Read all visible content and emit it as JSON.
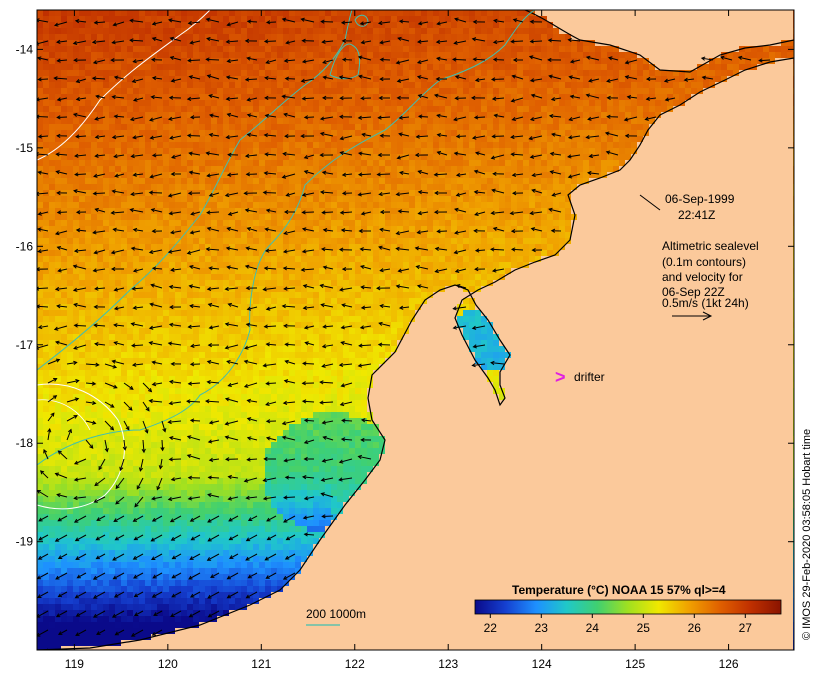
{
  "chart_data": {
    "type": "heatmap",
    "xlim": [
      118.6,
      126.7
    ],
    "ylim": [
      -20.1,
      -13.6
    ],
    "x_ticks": [
      119,
      120,
      121,
      122,
      123,
      124,
      125,
      126
    ],
    "x_tick_labels": [
      "119",
      "120",
      "121",
      "122",
      "123",
      "124",
      "125",
      "126"
    ],
    "y_ticks": [
      -14,
      -15,
      -16,
      -17,
      -18,
      -19
    ],
    "y_tick_labels": [
      "-14",
      "-15",
      "-16",
      "-17",
      "-18",
      "-19"
    ],
    "colorbar": {
      "title": "Temperature (°C) NOAA 15 57% ql>=4",
      "range": [
        21.7,
        27.7
      ],
      "ticks": [
        22,
        23,
        24,
        25,
        26,
        27
      ],
      "tick_labels": [
        "22",
        "23",
        "24",
        "25",
        "26",
        "27"
      ]
    },
    "legend": {
      "isobath_label": "200 1000m"
    },
    "annotations": {
      "date": "06-Sep-1999",
      "time": "22:41Z",
      "sealevel_lines": [
        "Altimetric sealevel",
        "(0.1m contours)",
        "and velocity for",
        "06-Sep 22Z",
        "0.5m/s (1kt 24h)"
      ],
      "drifter_label": "drifter",
      "drifter_marker": ">"
    },
    "credit": "© IMOS 29-Feb-2020 03:58:05 Hobart time"
  },
  "colors": {
    "land": "#fbc99b",
    "isobath": "#40c0b0",
    "sealevel_contour": "#ffffff",
    "drifter": "#e020e0",
    "colormap": [
      "#0a0a8a",
      "#1540d0",
      "#1e90ff",
      "#20c8c8",
      "#40d070",
      "#a0e020",
      "#f0e800",
      "#f0a000",
      "#e06000",
      "#c03000",
      "#8a1400"
    ]
  }
}
